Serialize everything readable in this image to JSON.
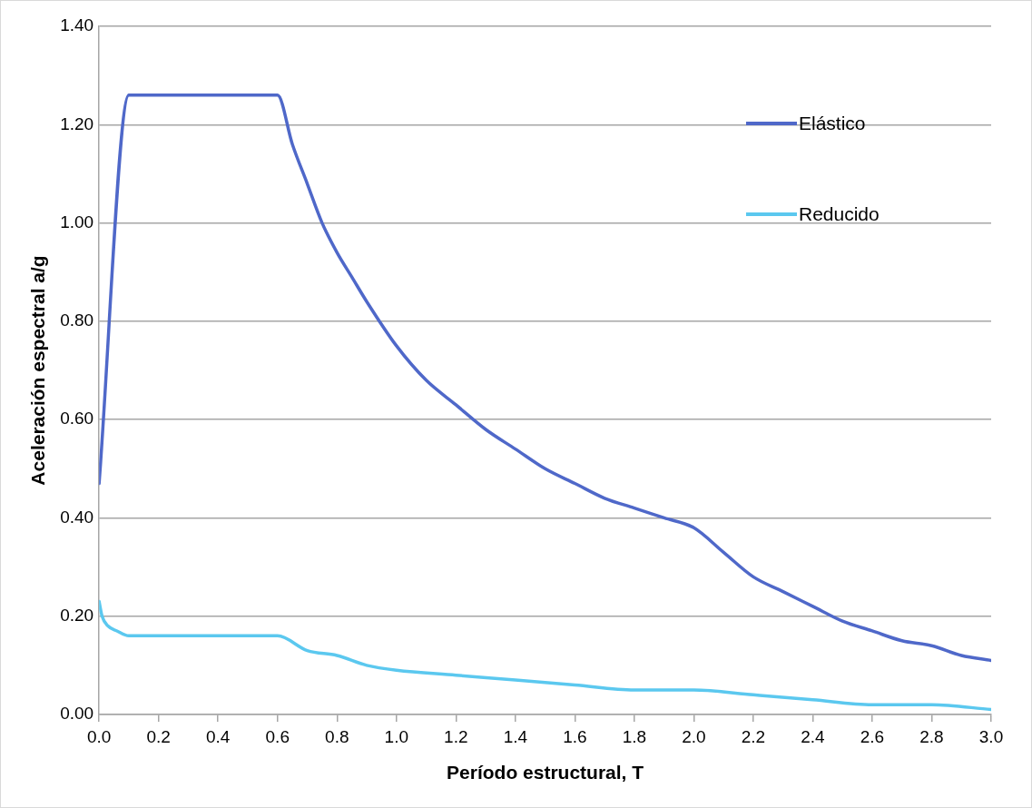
{
  "chart_data": {
    "type": "line",
    "xlabel": "Período estructural, T",
    "ylabel": "Aceleración espectral a/g",
    "xlim": [
      0,
      3.0
    ],
    "xticks": [
      {
        "value": 0,
        "label": "0.0"
      },
      {
        "value": 0.2,
        "label": "0.2"
      },
      {
        "value": 0.4,
        "label": "0.4"
      },
      {
        "value": 0.6,
        "label": "0.6"
      },
      {
        "value": 0.8,
        "label": "0.8"
      },
      {
        "value": 1.0,
        "label": "1.0"
      },
      {
        "value": 1.2,
        "label": "1.2"
      },
      {
        "value": 1.4,
        "label": "1.4"
      },
      {
        "value": 1.6,
        "label": "1.6"
      },
      {
        "value": 1.8,
        "label": "1.8"
      },
      {
        "value": 2.0,
        "label": "2.0"
      },
      {
        "value": 2.2,
        "label": "2.2"
      },
      {
        "value": 2.4,
        "label": "2.4"
      },
      {
        "value": 2.6,
        "label": "2.6"
      },
      {
        "value": 2.8,
        "label": "2.8"
      },
      {
        "value": 3.0,
        "label": "3.0"
      }
    ],
    "ylim": [
      0,
      1.4
    ],
    "yticks": [
      {
        "value": 0,
        "label": "0.00"
      },
      {
        "value": 0.2,
        "label": "0.20"
      },
      {
        "value": 0.4,
        "label": "0.40"
      },
      {
        "value": 0.6,
        "label": "0.60"
      },
      {
        "value": 0.8,
        "label": "0.80"
      },
      {
        "value": 1.0,
        "label": "1.00"
      },
      {
        "value": 1.2,
        "label": "1.20"
      },
      {
        "value": 1.4,
        "label": "1.40"
      }
    ],
    "grid": "y",
    "legend": "top right",
    "marker": "none",
    "line_style": "solid",
    "series": [
      {
        "name": "Elástico",
        "color": "#4f68c9",
        "x": [
          0,
          0.1,
          0.6,
          0.65,
          0.7,
          0.75,
          0.8,
          0.85,
          0.9,
          1.0,
          1.1,
          1.2,
          1.3,
          1.4,
          1.5,
          1.6,
          1.7,
          1.8,
          1.9,
          2.0,
          2.1,
          2.2,
          2.3,
          2.4,
          2.5,
          2.6,
          2.7,
          2.8,
          2.9,
          3.0
        ],
        "values": [
          0.47,
          1.26,
          1.26,
          1.16,
          1.08,
          1.0,
          0.94,
          0.89,
          0.84,
          0.75,
          0.68,
          0.63,
          0.58,
          0.54,
          0.5,
          0.47,
          0.44,
          0.42,
          0.4,
          0.38,
          0.33,
          0.28,
          0.25,
          0.22,
          0.19,
          0.17,
          0.15,
          0.14,
          0.12,
          0.11
        ]
      },
      {
        "name": "Reducido",
        "color": "#5bc8ef",
        "x": [
          0,
          0.01,
          0.03,
          0.06,
          0.1,
          0.6,
          0.7,
          0.8,
          0.9,
          1.0,
          1.2,
          1.4,
          1.6,
          1.8,
          2.0,
          2.2,
          2.4,
          2.6,
          2.8,
          3.0
        ],
        "values": [
          0.23,
          0.2,
          0.18,
          0.17,
          0.16,
          0.16,
          0.13,
          0.12,
          0.1,
          0.09,
          0.08,
          0.07,
          0.06,
          0.05,
          0.05,
          0.04,
          0.03,
          0.02,
          0.02,
          0.01
        ]
      }
    ]
  }
}
